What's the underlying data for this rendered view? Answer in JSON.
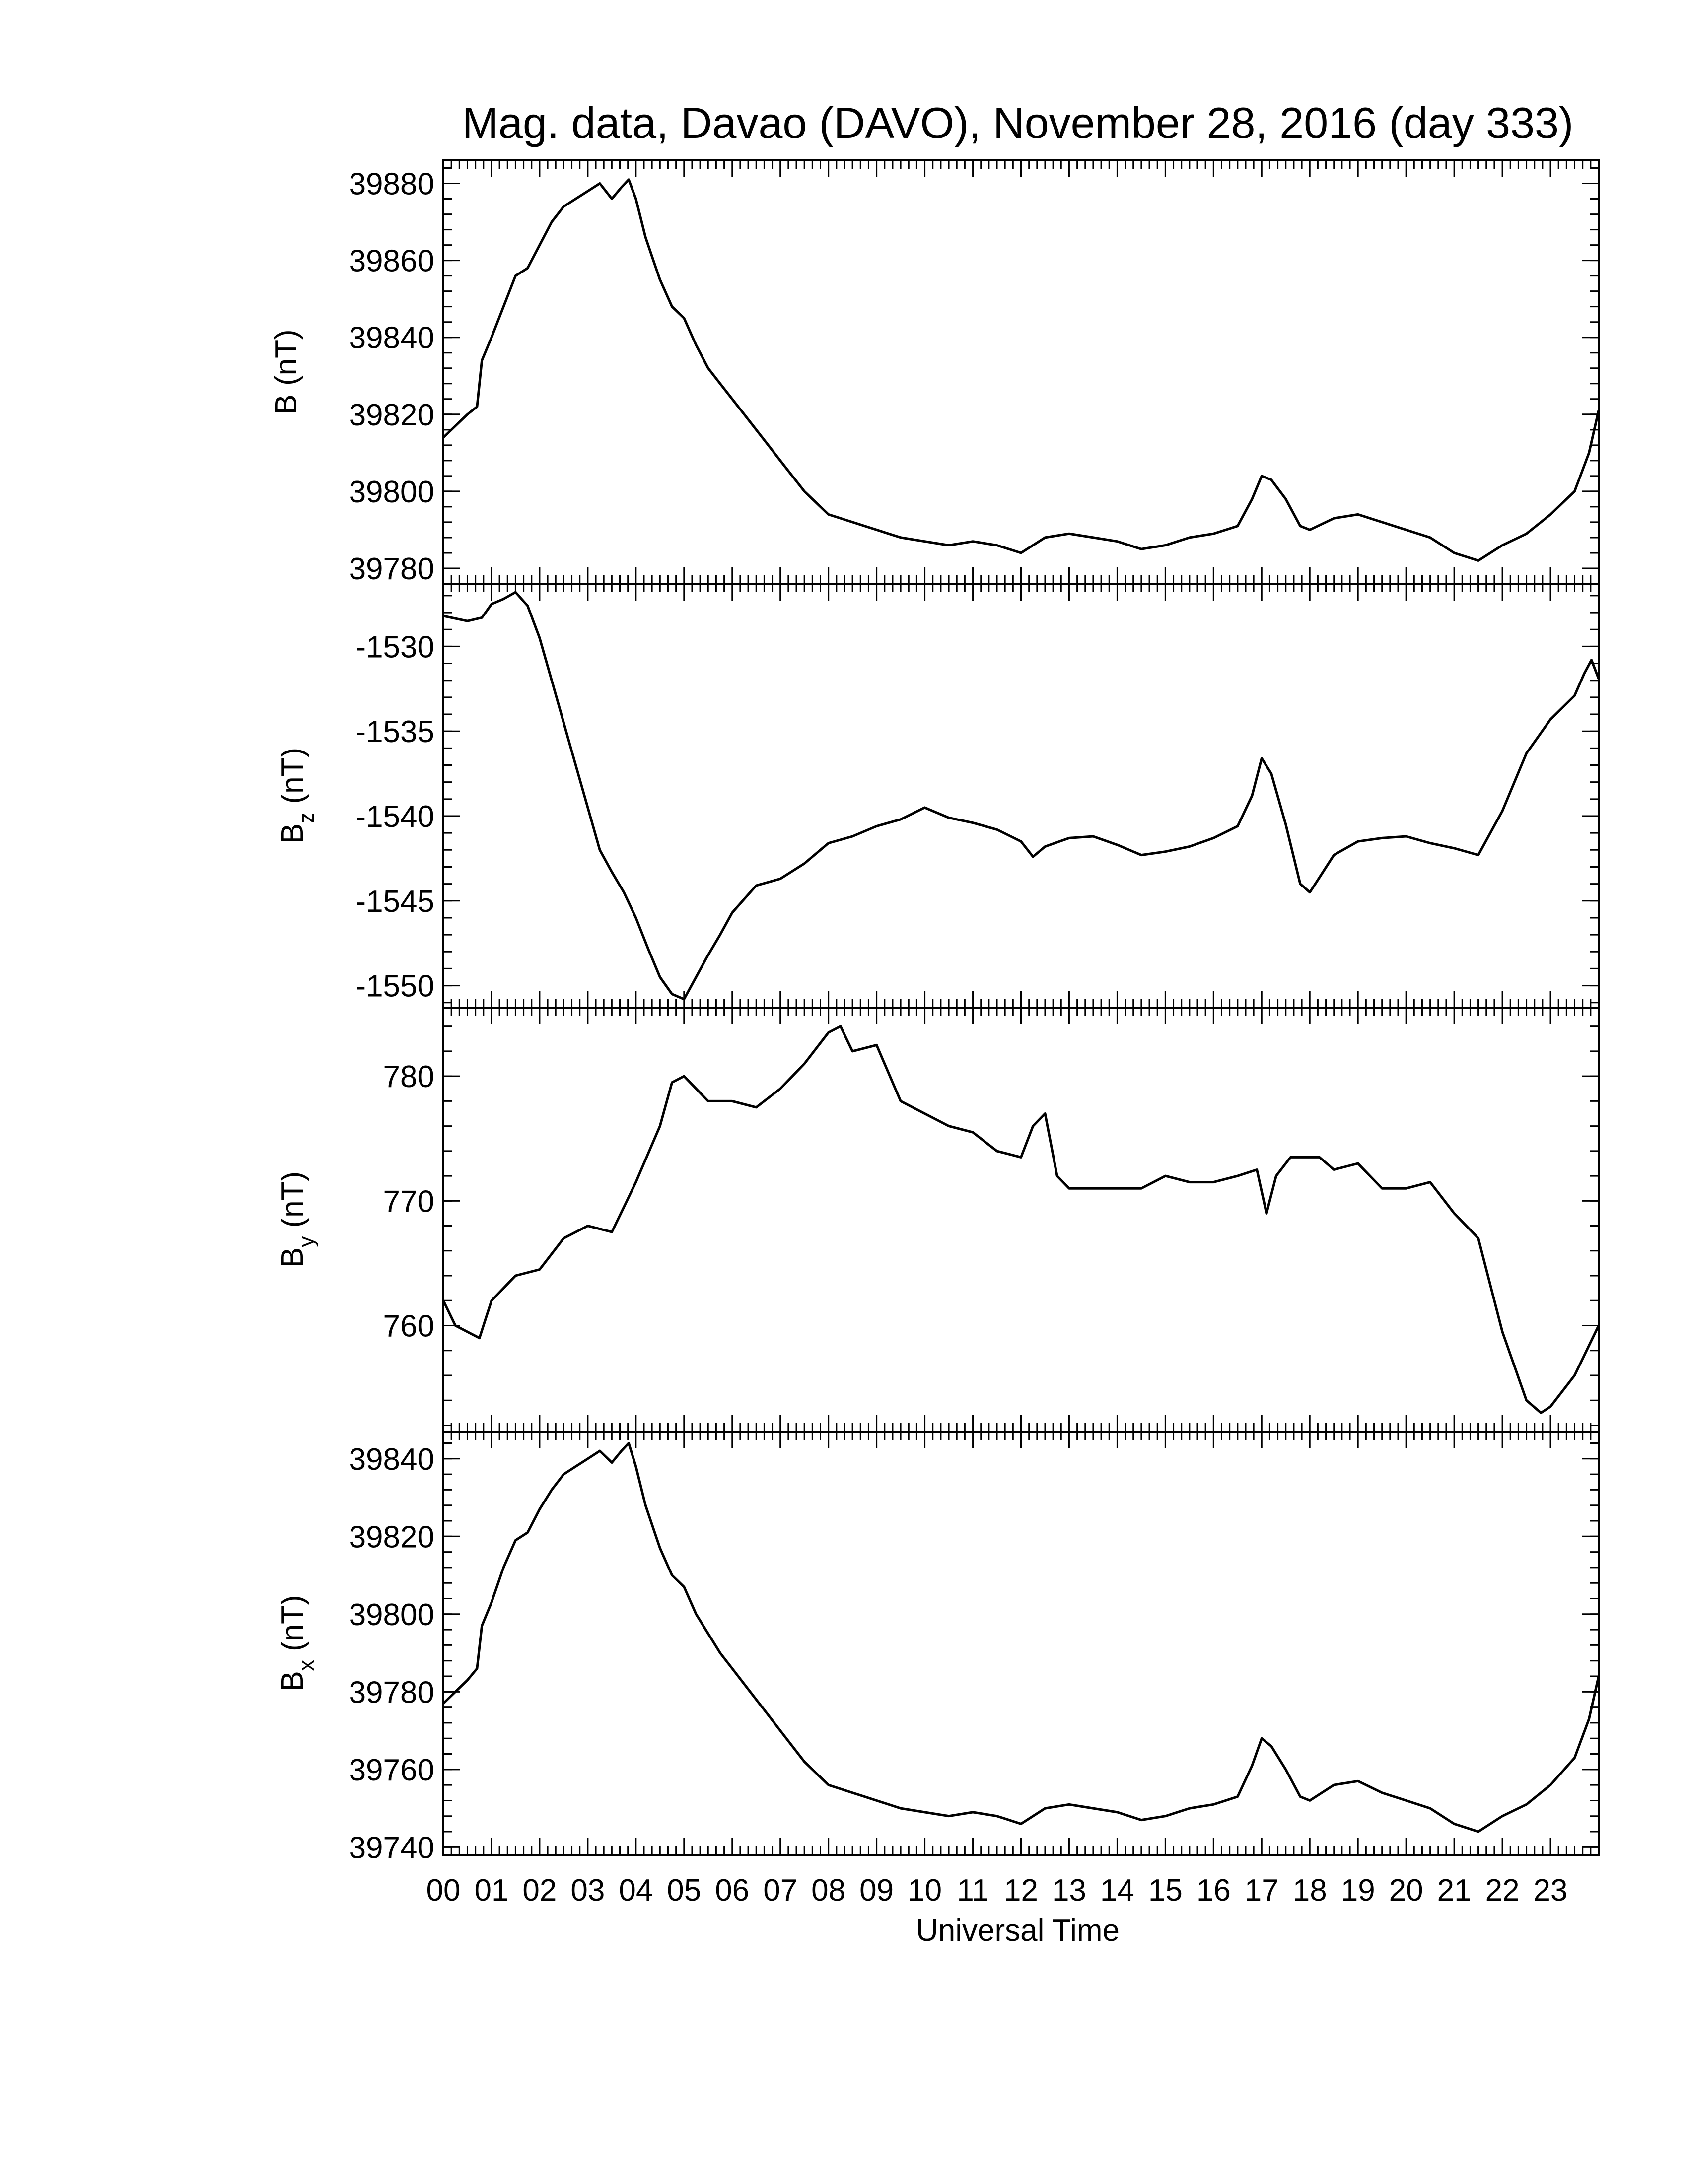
{
  "chart_data": {
    "type": "line",
    "title": "Mag. data, Davao (DAVO), November 28, 2016 (day 333)",
    "xlabel": "Universal Time",
    "x_unit": "hours (UT)",
    "xlim": [
      0,
      24
    ],
    "x_ticks": [
      "00",
      "01",
      "02",
      "03",
      "04",
      "05",
      "06",
      "07",
      "08",
      "09",
      "10",
      "11",
      "12",
      "13",
      "14",
      "15",
      "16",
      "17",
      "18",
      "19",
      "20",
      "21",
      "22",
      "23"
    ],
    "panels": [
      {
        "id": "B",
        "ylabel": "B (nT)",
        "ylabel_main": "B",
        "ylabel_sub": "",
        "ylabel_rest": " (nT)",
        "ylim": [
          39776,
          39886
        ],
        "y_ticks": [
          39780,
          39800,
          39820,
          39840,
          39860,
          39880
        ],
        "y_tick_labels": [
          "39780",
          "39800",
          "39820",
          "39840",
          "39860",
          "39880"
        ],
        "series": [
          {
            "name": "B",
            "x": [
              0,
              0.25,
              0.5,
              0.7,
              0.8,
              1.0,
              1.25,
              1.5,
              1.75,
              2.0,
              2.25,
              2.5,
              2.75,
              3.0,
              3.25,
              3.5,
              3.7,
              3.85,
              4.0,
              4.2,
              4.5,
              4.75,
              5.0,
              5.25,
              5.5,
              5.75,
              6.0,
              6.5,
              7.0,
              7.5,
              8.0,
              8.5,
              9.0,
              9.5,
              10.0,
              10.5,
              11.0,
              11.5,
              12.0,
              12.5,
              13.0,
              13.5,
              14.0,
              14.5,
              15.0,
              15.5,
              16.0,
              16.5,
              16.8,
              17.0,
              17.2,
              17.5,
              17.8,
              18.0,
              18.5,
              19.0,
              19.5,
              20.0,
              20.5,
              21.0,
              21.5,
              22.0,
              22.5,
              23.0,
              23.5,
              23.8,
              24.0
            ],
            "y": [
              39814,
              39817,
              39820,
              39822,
              39834,
              39840,
              39848,
              39856,
              39858,
              39864,
              39870,
              39874,
              39876,
              39878,
              39880,
              39876,
              39879,
              39881,
              39876,
              39866,
              39855,
              39848,
              39845,
              39838,
              39832,
              39828,
              39824,
              39816,
              39808,
              39800,
              39794,
              39792,
              39790,
              39788,
              39787,
              39786,
              39787,
              39786,
              39784,
              39788,
              39789,
              39788,
              39787,
              39785,
              39786,
              39788,
              39789,
              39791,
              39798,
              39804,
              39803,
              39798,
              39791,
              39790,
              39793,
              39794,
              39792,
              39790,
              39788,
              39784,
              39782,
              39786,
              39789,
              39794,
              39800,
              39810,
              39821
            ]
          }
        ]
      },
      {
        "id": "Bz",
        "ylabel": "Bz (nT)",
        "ylabel_main": "B",
        "ylabel_sub": "z",
        "ylabel_rest": " (nT)",
        "ylim": [
          -1551.3,
          -1526.3
        ],
        "y_ticks": [
          -1550,
          -1545,
          -1540,
          -1535,
          -1530
        ],
        "y_tick_labels": [
          "-1550",
          "-1545",
          "-1540",
          "-1535",
          "-1530"
        ],
        "series": [
          {
            "name": "Bz",
            "x": [
              0,
              0.5,
              0.8,
              1.0,
              1.25,
              1.5,
              1.75,
              2.0,
              2.25,
              2.5,
              2.75,
              3.0,
              3.25,
              3.5,
              3.75,
              4.0,
              4.25,
              4.5,
              4.75,
              5.0,
              5.25,
              5.5,
              5.75,
              6.0,
              6.5,
              7.0,
              7.5,
              8.0,
              8.5,
              9.0,
              9.5,
              10.0,
              10.5,
              11.0,
              11.5,
              12.0,
              12.25,
              12.5,
              13.0,
              13.5,
              14.0,
              14.5,
              15.0,
              15.5,
              16.0,
              16.5,
              16.8,
              17.0,
              17.2,
              17.5,
              17.8,
              18.0,
              18.5,
              19.0,
              19.5,
              20.0,
              20.5,
              21.0,
              21.5,
              22.0,
              22.5,
              23.0,
              23.5,
              23.7,
              23.85,
              24.0
            ],
            "y": [
              -1528.2,
              -1528.5,
              -1528.3,
              -1527.5,
              -1527.2,
              -1526.8,
              -1527.6,
              -1529.5,
              -1532,
              -1534.5,
              -1537,
              -1539.5,
              -1542,
              -1543.3,
              -1544.5,
              -1546,
              -1547.8,
              -1549.5,
              -1550.5,
              -1550.8,
              -1549.5,
              -1548.2,
              -1547,
              -1545.7,
              -1544.1,
              -1543.7,
              -1542.8,
              -1541.6,
              -1541.2,
              -1540.6,
              -1540.2,
              -1539.5,
              -1540.1,
              -1540.4,
              -1540.8,
              -1541.5,
              -1542.4,
              -1541.8,
              -1541.3,
              -1541.2,
              -1541.7,
              -1542.3,
              -1542.1,
              -1541.8,
              -1541.3,
              -1540.6,
              -1538.8,
              -1536.6,
              -1537.5,
              -1540.5,
              -1544,
              -1544.5,
              -1542.3,
              -1541.5,
              -1541.3,
              -1541.2,
              -1541.6,
              -1541.9,
              -1542.3,
              -1539.7,
              -1536.3,
              -1534.3,
              -1532.9,
              -1531.6,
              -1530.8,
              -1531.9
            ]
          }
        ]
      },
      {
        "id": "By",
        "ylabel": "By (nT)",
        "ylabel_main": "B",
        "ylabel_sub": "y",
        "ylabel_rest": " (nT)",
        "ylim": [
          751.5,
          785.5
        ],
        "y_ticks": [
          760,
          770,
          780
        ],
        "y_tick_labels": [
          "760",
          "770",
          "780"
        ],
        "series": [
          {
            "name": "By",
            "x": [
              0,
              0.25,
              0.5,
              0.75,
              1.0,
              1.5,
              2.0,
              2.5,
              3.0,
              3.5,
              4.0,
              4.5,
              4.75,
              5.0,
              5.5,
              6.0,
              6.5,
              7.0,
              7.5,
              8.0,
              8.25,
              8.5,
              9.0,
              9.5,
              10.0,
              10.5,
              11.0,
              11.5,
              12.0,
              12.25,
              12.5,
              12.75,
              13.0,
              13.5,
              14.0,
              14.5,
              15.0,
              15.5,
              16.0,
              16.5,
              16.9,
              17.1,
              17.3,
              17.6,
              17.9,
              18.2,
              18.5,
              19.0,
              19.5,
              20.0,
              20.5,
              21.0,
              21.5,
              22.0,
              22.5,
              22.8,
              23.0,
              23.5,
              24.0
            ],
            "y": [
              762,
              760,
              759.5,
              759,
              762,
              764,
              764.5,
              767,
              768,
              767.5,
              771.5,
              776,
              779.5,
              780,
              778,
              778,
              777.5,
              779,
              781,
              783.5,
              784,
              782,
              782.5,
              778,
              777,
              776,
              775.5,
              774,
              773.5,
              776,
              777,
              772,
              771,
              771,
              771,
              771,
              772,
              771.5,
              771.5,
              772,
              772.5,
              769,
              772,
              773.5,
              773.5,
              773.5,
              772.5,
              773,
              771,
              771,
              771.5,
              769,
              767,
              759.5,
              754,
              753,
              753.5,
              756,
              760
            ]
          }
        ]
      },
      {
        "id": "Bx",
        "ylabel": "Bx (nT)",
        "ylabel_main": "B",
        "ylabel_sub": "x",
        "ylabel_rest": " (nT)",
        "ylim": [
          39738,
          39847
        ],
        "y_ticks": [
          39740,
          39760,
          39780,
          39800,
          39820,
          39840
        ],
        "y_tick_labels": [
          "39740",
          "39760",
          "39780",
          "39800",
          "39820",
          "39840"
        ],
        "series": [
          {
            "name": "Bx",
            "x": [
              0,
              0.25,
              0.5,
              0.7,
              0.8,
              1.0,
              1.25,
              1.5,
              1.75,
              2.0,
              2.25,
              2.5,
              2.75,
              3.0,
              3.25,
              3.5,
              3.7,
              3.85,
              4.0,
              4.2,
              4.5,
              4.75,
              5.0,
              5.25,
              5.5,
              5.75,
              6.0,
              6.5,
              7.0,
              7.5,
              8.0,
              8.5,
              9.0,
              9.5,
              10.0,
              10.5,
              11.0,
              11.5,
              12.0,
              12.5,
              13.0,
              13.5,
              14.0,
              14.5,
              15.0,
              15.5,
              16.0,
              16.5,
              16.8,
              17.0,
              17.2,
              17.5,
              17.8,
              18.0,
              18.5,
              19.0,
              19.5,
              20.0,
              20.5,
              21.0,
              21.5,
              22.0,
              22.5,
              23.0,
              23.5,
              23.8,
              24.0
            ],
            "y": [
              39777,
              39780,
              39783,
              39786,
              39797,
              39803,
              39812,
              39819,
              39821,
              39827,
              39832,
              39836,
              39838,
              39840,
              39842,
              39839,
              39842,
              39844,
              39838,
              39828,
              39817,
              39810,
              39807,
              39800,
              39795,
              39790,
              39786,
              39778,
              39770,
              39762,
              39756,
              39754,
              39752,
              39750,
              39749,
              39748,
              39749,
              39748,
              39746,
              39750,
              39751,
              39750,
              39749,
              39747,
              39748,
              39750,
              39751,
              39753,
              39761,
              39768,
              39766,
              39760,
              39753,
              39752,
              39756,
              39757,
              39754,
              39752,
              39750,
              39746,
              39744,
              39748,
              39751,
              39756,
              39763,
              39773,
              39784
            ]
          }
        ]
      }
    ]
  }
}
